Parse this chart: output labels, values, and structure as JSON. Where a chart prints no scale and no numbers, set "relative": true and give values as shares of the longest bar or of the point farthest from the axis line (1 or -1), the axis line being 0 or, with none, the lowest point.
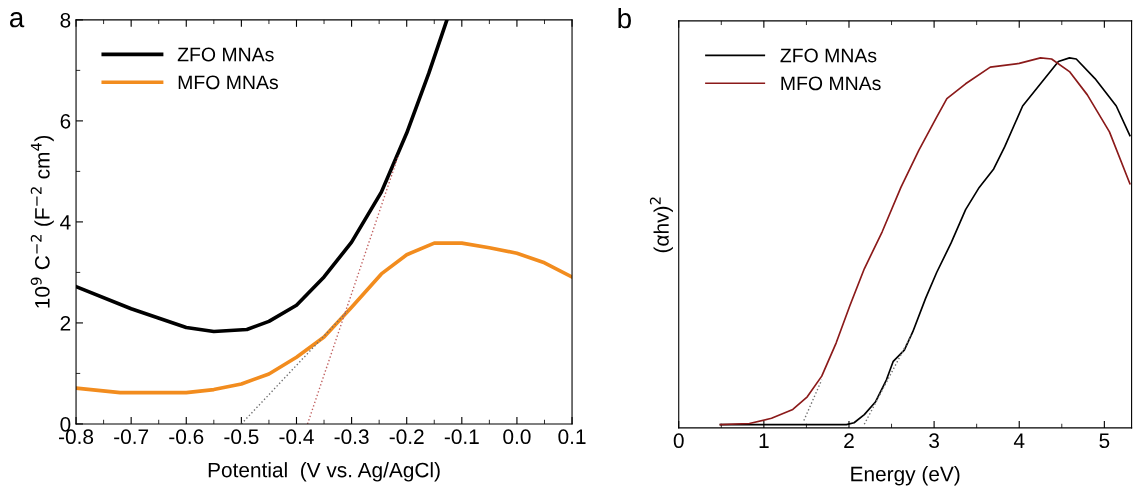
{
  "chart_data": [
    {
      "type": "line",
      "title": "a",
      "xlabel": "Potential  (V vs. Ag/AgCl)",
      "ylabel": "10$^{9}$ C$^{−2}$ (F$^{−2}$ cm$^{4}$)",
      "xlim": [
        -0.8,
        0.1
      ],
      "xticks": [
        {
          "value": -0.8,
          "label": "-0.8"
        },
        {
          "value": -0.7,
          "label": "-0.7"
        },
        {
          "value": -0.6,
          "label": "-0.6"
        },
        {
          "value": -0.5,
          "label": "-0.5"
        },
        {
          "value": -0.4,
          "label": "-0.4"
        },
        {
          "value": -0.3,
          "label": "-0.3"
        },
        {
          "value": -0.2,
          "label": "-0.2"
        },
        {
          "value": -0.1,
          "label": "-0.1"
        },
        {
          "value": 0.0,
          "label": "0.0"
        },
        {
          "value": 0.1,
          "label": "0.1"
        }
      ],
      "ylim": [
        0,
        8
      ],
      "yticks": [
        0,
        2,
        4,
        6,
        8
      ],
      "grid": false,
      "legend": "top left",
      "series": [
        {
          "name": "ZFO MNAs",
          "color": "#000000",
          "x": [
            -0.8,
            -0.7,
            -0.6,
            -0.55,
            -0.49,
            -0.45,
            -0.4,
            -0.35,
            -0.3,
            -0.246,
            -0.2,
            -0.16,
            -0.127
          ],
          "values": [
            2.72,
            2.28,
            1.91,
            1.83,
            1.87,
            2.03,
            2.35,
            2.91,
            3.6,
            4.59,
            5.76,
            6.94,
            8.0
          ]
        },
        {
          "name": "MFO MNAs",
          "color": "#f28c1e",
          "x": [
            -0.8,
            -0.72,
            -0.6,
            -0.55,
            -0.5,
            -0.45,
            -0.4,
            -0.35,
            -0.3,
            -0.246,
            -0.2,
            -0.15,
            -0.1,
            -0.05,
            0.0,
            0.05,
            0.1
          ],
          "values": [
            0.71,
            0.62,
            0.62,
            0.68,
            0.79,
            0.99,
            1.32,
            1.72,
            2.31,
            2.97,
            3.35,
            3.58,
            3.58,
            3.49,
            3.38,
            3.19,
            2.91
          ]
        },
        {
          "color": "#c06060",
          "line_style": "dotted",
          "x": [
            -0.38,
            -0.215
          ],
          "values": [
            0,
            5.32
          ]
        },
        {
          "color": "#707070",
          "line_style": "dotted",
          "x": [
            -0.5,
            -0.307
          ],
          "values": [
            0,
            2.24
          ]
        }
      ]
    },
    {
      "type": "line",
      "title": "b",
      "xlabel": "Energy (eV)",
      "ylabel": "(αhv)$^{2}$",
      "relative": true,
      "xlim": [
        0,
        5.32
      ],
      "xticks": [
        0,
        1,
        2,
        3,
        4,
        5
      ],
      "grid": false,
      "legend": "top left",
      "tick_labels": "x",
      "series": [
        {
          "name": "ZFO MNAs",
          "color": "#000000",
          "x": [
            0.49,
            1.97,
            2.06,
            2.18,
            2.31,
            2.44,
            2.52,
            2.65,
            2.75,
            2.9,
            3.03,
            3.2,
            3.37,
            3.53,
            3.7,
            3.83,
            4.04,
            4.25,
            4.46,
            4.59,
            4.67,
            4.89,
            5.14,
            5.3
          ],
          "values": [
            0.009,
            0.009,
            0.014,
            0.036,
            0.07,
            0.13,
            0.18,
            0.21,
            0.26,
            0.35,
            0.42,
            0.5,
            0.59,
            0.65,
            0.7,
            0.76,
            0.87,
            0.93,
            0.99,
            1.0,
            0.997,
            0.944,
            0.87,
            0.79
          ]
        },
        {
          "name": "MFO MNAs",
          "color": "#8b1a1a",
          "x": [
            0.49,
            0.83,
            1.09,
            1.34,
            1.51,
            1.68,
            1.85,
            2.01,
            2.18,
            2.39,
            2.61,
            2.82,
            3.03,
            3.15,
            3.37,
            3.66,
            4.0,
            4.25,
            4.38,
            4.59,
            4.8,
            5.06,
            5.3
          ],
          "values": [
            0.009,
            0.012,
            0.026,
            0.05,
            0.084,
            0.14,
            0.23,
            0.33,
            0.43,
            0.53,
            0.65,
            0.75,
            0.84,
            0.89,
            0.93,
            0.975,
            0.985,
            1.0,
            0.997,
            0.963,
            0.9,
            0.8,
            0.66
          ]
        },
        {
          "color": "#707070",
          "line_style": "dotted",
          "x": [
            1.47,
            1.68
          ],
          "values": [
            0.02,
            0.13
          ]
        },
        {
          "color": "#707070",
          "line_style": "dotted",
          "x": [
            2.18,
            2.73
          ],
          "values": [
            0.01,
            0.25
          ]
        }
      ]
    }
  ]
}
